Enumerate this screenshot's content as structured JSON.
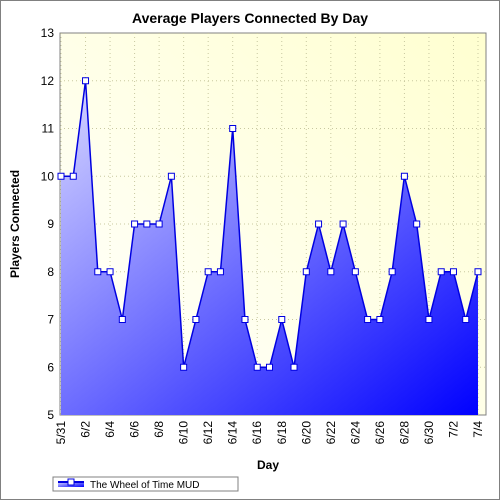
{
  "chart_data": {
    "type": "area",
    "title": "Average Players Connected By Day",
    "xlabel": "Day",
    "ylabel": "Players Connected",
    "ylim": [
      5,
      13
    ],
    "yticks": [
      "5",
      "6",
      "7",
      "8",
      "9",
      "10",
      "11",
      "12",
      "13"
    ],
    "grid": true,
    "legend_position": "bottom-left",
    "x": [
      "5/31",
      "6/1",
      "6/2",
      "6/3",
      "6/4",
      "6/5",
      "6/6",
      "6/7",
      "6/8",
      "6/9",
      "6/10",
      "6/11",
      "6/12",
      "6/13",
      "6/14",
      "6/15",
      "6/16",
      "6/17",
      "6/18",
      "6/19",
      "6/20",
      "6/21",
      "6/22",
      "6/23",
      "6/24",
      "6/25",
      "6/26",
      "6/27",
      "6/28",
      "6/29",
      "6/30",
      "7/1",
      "7/2",
      "7/3",
      "7/4"
    ],
    "xtick_labels": [
      "5/31",
      "6/2",
      "6/4",
      "6/6",
      "6/8",
      "6/10",
      "6/12",
      "6/14",
      "6/16",
      "6/18",
      "6/20",
      "6/22",
      "6/24",
      "6/26",
      "6/28",
      "6/30",
      "7/2",
      "7/4"
    ],
    "series": [
      {
        "name": "The Wheel of Time MUD",
        "values": [
          10,
          10,
          12,
          8,
          8,
          7,
          9,
          9,
          9,
          10,
          6,
          7,
          8,
          8,
          11,
          7,
          6,
          6,
          7,
          6,
          8,
          9,
          8,
          9,
          8,
          7,
          7,
          8,
          10,
          9,
          7,
          8,
          8,
          7,
          8
        ]
      }
    ],
    "colors": {
      "line": "#0000e0",
      "fill_light": "#d8d8ff",
      "fill_dark": "#0000ff",
      "plot_bg_light": "#ffffd0",
      "plot_bg_white": "#ffffff",
      "grid": "#c8c8a0"
    }
  }
}
